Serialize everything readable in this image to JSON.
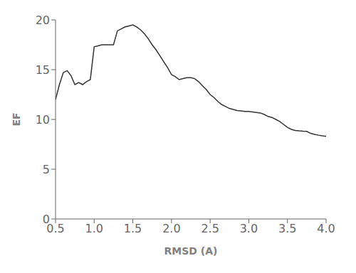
{
  "chart_data": {
    "type": "line",
    "xlabel": "RMSD (A)",
    "ylabel": "EF",
    "color": "#333333",
    "grid": false,
    "x": [
      0.5,
      0.55,
      0.6,
      0.65,
      0.7,
      0.75,
      0.8,
      0.85,
      0.9,
      0.95,
      1.0,
      1.05,
      1.1,
      1.15,
      1.2,
      1.25,
      1.3,
      1.35,
      1.4,
      1.45,
      1.5,
      1.55,
      1.6,
      1.65,
      1.7,
      1.75,
      1.8,
      1.85,
      1.9,
      1.95,
      2.0,
      2.05,
      2.1,
      2.15,
      2.2,
      2.25,
      2.3,
      2.35,
      2.4,
      2.45,
      2.5,
      2.55,
      2.6,
      2.65,
      2.7,
      2.75,
      2.8,
      2.85,
      2.9,
      2.95,
      3.0,
      3.05,
      3.1,
      3.15,
      3.2,
      3.25,
      3.3,
      3.35,
      3.4,
      3.45,
      3.5,
      3.55,
      3.6,
      3.65,
      3.7,
      3.75,
      3.8,
      3.85,
      3.9,
      3.95,
      4.0
    ],
    "values": [
      12.0,
      13.5,
      14.7,
      14.9,
      14.4,
      13.5,
      13.7,
      13.5,
      13.8,
      14.0,
      17.3,
      17.4,
      17.5,
      17.5,
      17.5,
      17.5,
      18.9,
      19.1,
      19.3,
      19.4,
      19.5,
      19.3,
      19.0,
      18.6,
      18.1,
      17.5,
      17.0,
      16.4,
      15.8,
      15.2,
      14.5,
      14.3,
      14.0,
      14.1,
      14.2,
      14.2,
      14.1,
      13.8,
      13.4,
      13.0,
      12.5,
      12.2,
      11.8,
      11.5,
      11.3,
      11.1,
      11.0,
      10.9,
      10.85,
      10.8,
      10.8,
      10.75,
      10.7,
      10.65,
      10.5,
      10.3,
      10.2,
      10.0,
      9.8,
      9.5,
      9.2,
      9.0,
      8.9,
      8.85,
      8.82,
      8.8,
      8.6,
      8.5,
      8.42,
      8.35,
      8.3
    ],
    "xlim": [
      0.5,
      4.0
    ],
    "ylim": [
      0,
      20
    ],
    "xticks": [
      {
        "value": 0.5,
        "label": "0.5"
      },
      {
        "value": 1.0,
        "label": "1.0"
      },
      {
        "value": 1.5,
        "label": "1.5"
      },
      {
        "value": 2.0,
        "label": "2.0"
      },
      {
        "value": 2.5,
        "label": "2.5"
      },
      {
        "value": 3.0,
        "label": "3.0"
      },
      {
        "value": 3.5,
        "label": "3.5"
      },
      {
        "value": 4.0,
        "label": "4.0"
      }
    ],
    "yticks": [
      0,
      5,
      10,
      15,
      20
    ]
  }
}
